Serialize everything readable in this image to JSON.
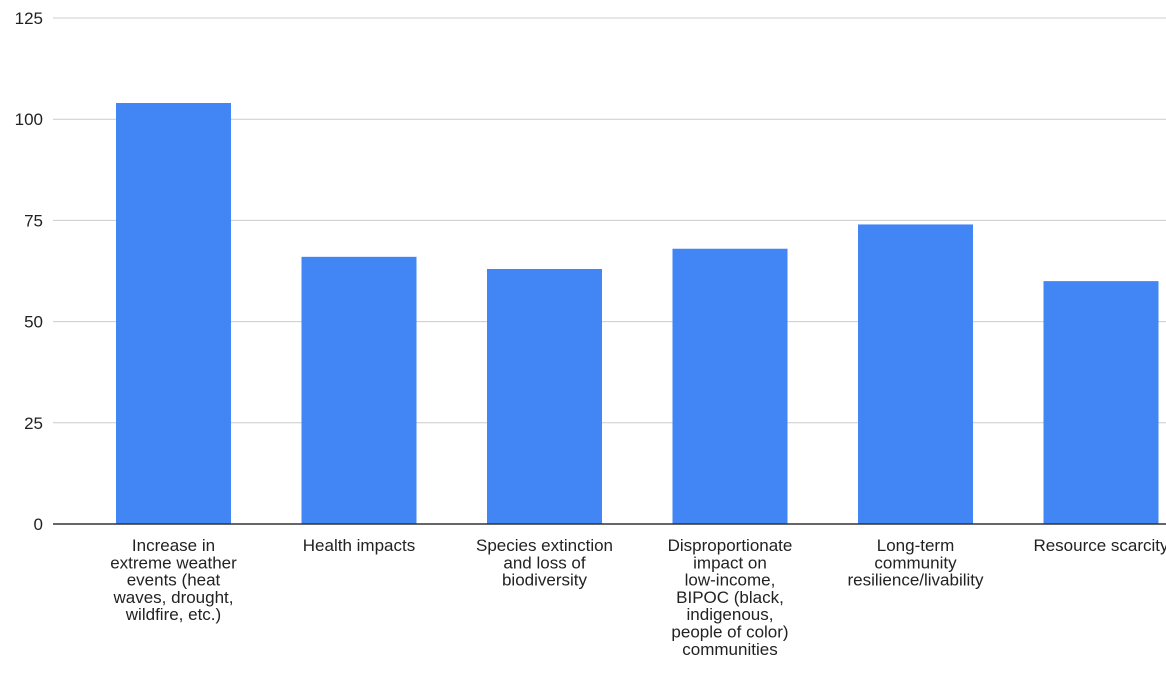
{
  "chart_data": {
    "type": "bar",
    "categories": [
      [
        "Increase in",
        "extreme weather",
        "events (heat",
        "waves, drought,",
        "wildfire, etc.)"
      ],
      [
        "Health impacts"
      ],
      [
        "Species extinction",
        "and loss of",
        "biodiversity"
      ],
      [
        "Disproportionate",
        "impact on",
        "low-income,",
        "BIPOC (black,",
        "indigenous,",
        "people of color)",
        "communities"
      ],
      [
        "Long-term",
        "community",
        "resilience/livability"
      ],
      [
        "Resource scarcity"
      ]
    ],
    "values": [
      104,
      66,
      63,
      68,
      74,
      60
    ],
    "ylim": [
      0,
      125
    ],
    "yticks": [
      0,
      25,
      50,
      75,
      100,
      125
    ],
    "title": "",
    "xlabel": "",
    "ylabel": "",
    "grid": true,
    "legend": "none",
    "colors": {
      "bar": "#4285f4",
      "grid": "#cccccc",
      "axis": "#333333"
    }
  }
}
